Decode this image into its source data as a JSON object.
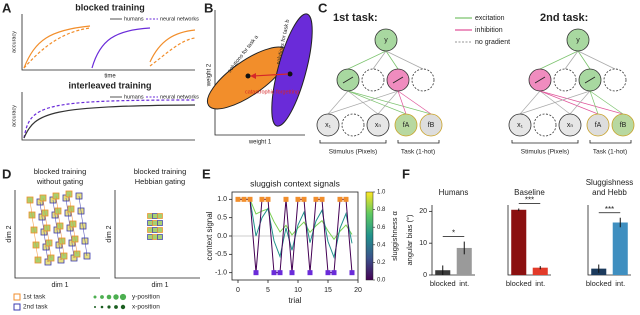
{
  "panel_labels": [
    "A",
    "B",
    "C",
    "D",
    "E",
    "F"
  ],
  "panel_a": {
    "top": {
      "title": "blocked training",
      "ylabel": "accuracy",
      "xlabel": "time",
      "legend": [
        "humans",
        "neural networks"
      ]
    },
    "bottom": {
      "title": "interleaved training",
      "ylabel": "accuracy",
      "legend": [
        "humans",
        "neural networks"
      ]
    }
  },
  "panel_b": {
    "xlabel": "weight 1",
    "ylabel": "weight 2",
    "task_a": "solutions for task a",
    "task_b": "solutions for task b",
    "arrow": "catastrophic forgetting"
  },
  "panel_c": {
    "tasks": [
      {
        "title": "1st task:",
        "stimulus": "Stimulus (Pixels)",
        "task": "Task (1-hot)"
      },
      {
        "title": "2nd task:",
        "stimulus": "Stimulus (Pixels)",
        "task": "Task (1-hot)"
      }
    ],
    "nodes": {
      "y": "y",
      "x1": "x₁",
      "xn": "xₙ",
      "fa": "fA",
      "fb": "fB"
    },
    "legend": [
      "excitation",
      "inhibition",
      "no gradient"
    ]
  },
  "panel_d": {
    "left_title": [
      "blocked training",
      "without gating"
    ],
    "right_title": [
      "blocked training",
      "Hebbian gating"
    ],
    "xlabel": "dim 1",
    "ylabel": "dim 2",
    "legend": [
      "1st task",
      "2nd task"
    ],
    "position_legend": [
      "y-position",
      "x-position"
    ]
  },
  "chart_data": [
    {
      "type": "line",
      "title": "sluggish context signals",
      "xlabel": "trial",
      "ylabel": "context signal",
      "x": [
        0,
        1,
        2,
        3,
        4,
        5,
        6,
        7,
        8,
        9,
        10,
        11,
        12,
        13,
        14,
        15,
        16,
        17,
        18,
        19
      ],
      "series": [
        {
          "color": "#440154",
          "values": [
            1,
            1,
            1,
            -1,
            1,
            1,
            -1,
            -1,
            1,
            -1,
            1,
            1,
            -1,
            1,
            1,
            -1,
            -1,
            1,
            1,
            -1
          ]
        },
        {
          "color": "#21918c",
          "values": [
            1,
            1,
            1,
            0,
            0.5,
            0.75,
            -0.13,
            -0.56,
            0.22,
            -0.39,
            0.3,
            0.65,
            -0.18,
            0.41,
            0.7,
            -0.15,
            -0.58,
            0.21,
            0.61,
            -0.2
          ]
        },
        {
          "color": "#7ad151",
          "values": [
            1,
            1,
            1,
            0.6,
            0.68,
            0.74,
            0.39,
            0.11,
            0.29,
            0.03,
            0.22,
            0.38,
            0.1,
            0.28,
            0.42,
            0.14,
            -0.09,
            0.13,
            0.3,
            0.04
          ]
        }
      ],
      "context_colors": [
        "#f28e2b",
        "#6a2bd9"
      ],
      "xlim": [
        -1,
        20
      ],
      "ylim": [
        -1.2,
        1.2
      ],
      "xticks": [
        0,
        5,
        10,
        15,
        20
      ],
      "yticks": [
        {
          "value": -1,
          "label": "-1.0"
        },
        -0.5,
        {
          "value": 0,
          "label": "0.0"
        },
        0.5,
        {
          "value": 1,
          "label": "1.0"
        }
      ],
      "colorbar": {
        "label": "sluggishness α",
        "clim": [
          0,
          1
        ],
        "colors": [
          "#440154",
          "#3b528b",
          "#21918c",
          "#5ec962",
          "#fde725"
        ],
        "ticks": [
          {
            "value": 0,
            "label": "0.0"
          },
          0.2,
          0.4,
          0.6,
          0.8,
          {
            "value": 1,
            "label": "1.0"
          }
        ]
      }
    },
    {
      "type": "bar",
      "title": [
        "Humans"
      ],
      "ylabel": "angular bias (°)",
      "categories": [
        "blocked",
        "int."
      ],
      "values": [
        1.5,
        8.5
      ],
      "errors": [
        1.5,
        2
      ],
      "colors": [
        "#3a3a3a",
        "#9a9a9a"
      ],
      "ylim": [
        0,
        22
      ],
      "yticks": [
        0,
        10,
        20
      ],
      "significance": "*"
    },
    {
      "type": "bar",
      "title": [
        "Baseline"
      ],
      "categories": [
        "blocked",
        "int."
      ],
      "values": [
        20.5,
        2.3
      ],
      "errors": [
        0.4,
        0.5
      ],
      "colors": [
        "#8b1010",
        "#e23b2a"
      ],
      "ylim": [
        0,
        22
      ],
      "significance": "***"
    },
    {
      "type": "bar",
      "title": [
        "Sluggishness",
        "and Hebb"
      ],
      "categories": [
        "blocked",
        "int."
      ],
      "values": [
        2,
        16.5
      ],
      "errors": [
        1.3,
        1.5
      ],
      "colors": [
        "#1b3a5c",
        "#3f8fc0"
      ],
      "ylim": [
        0,
        22
      ],
      "significance": "***"
    }
  ]
}
